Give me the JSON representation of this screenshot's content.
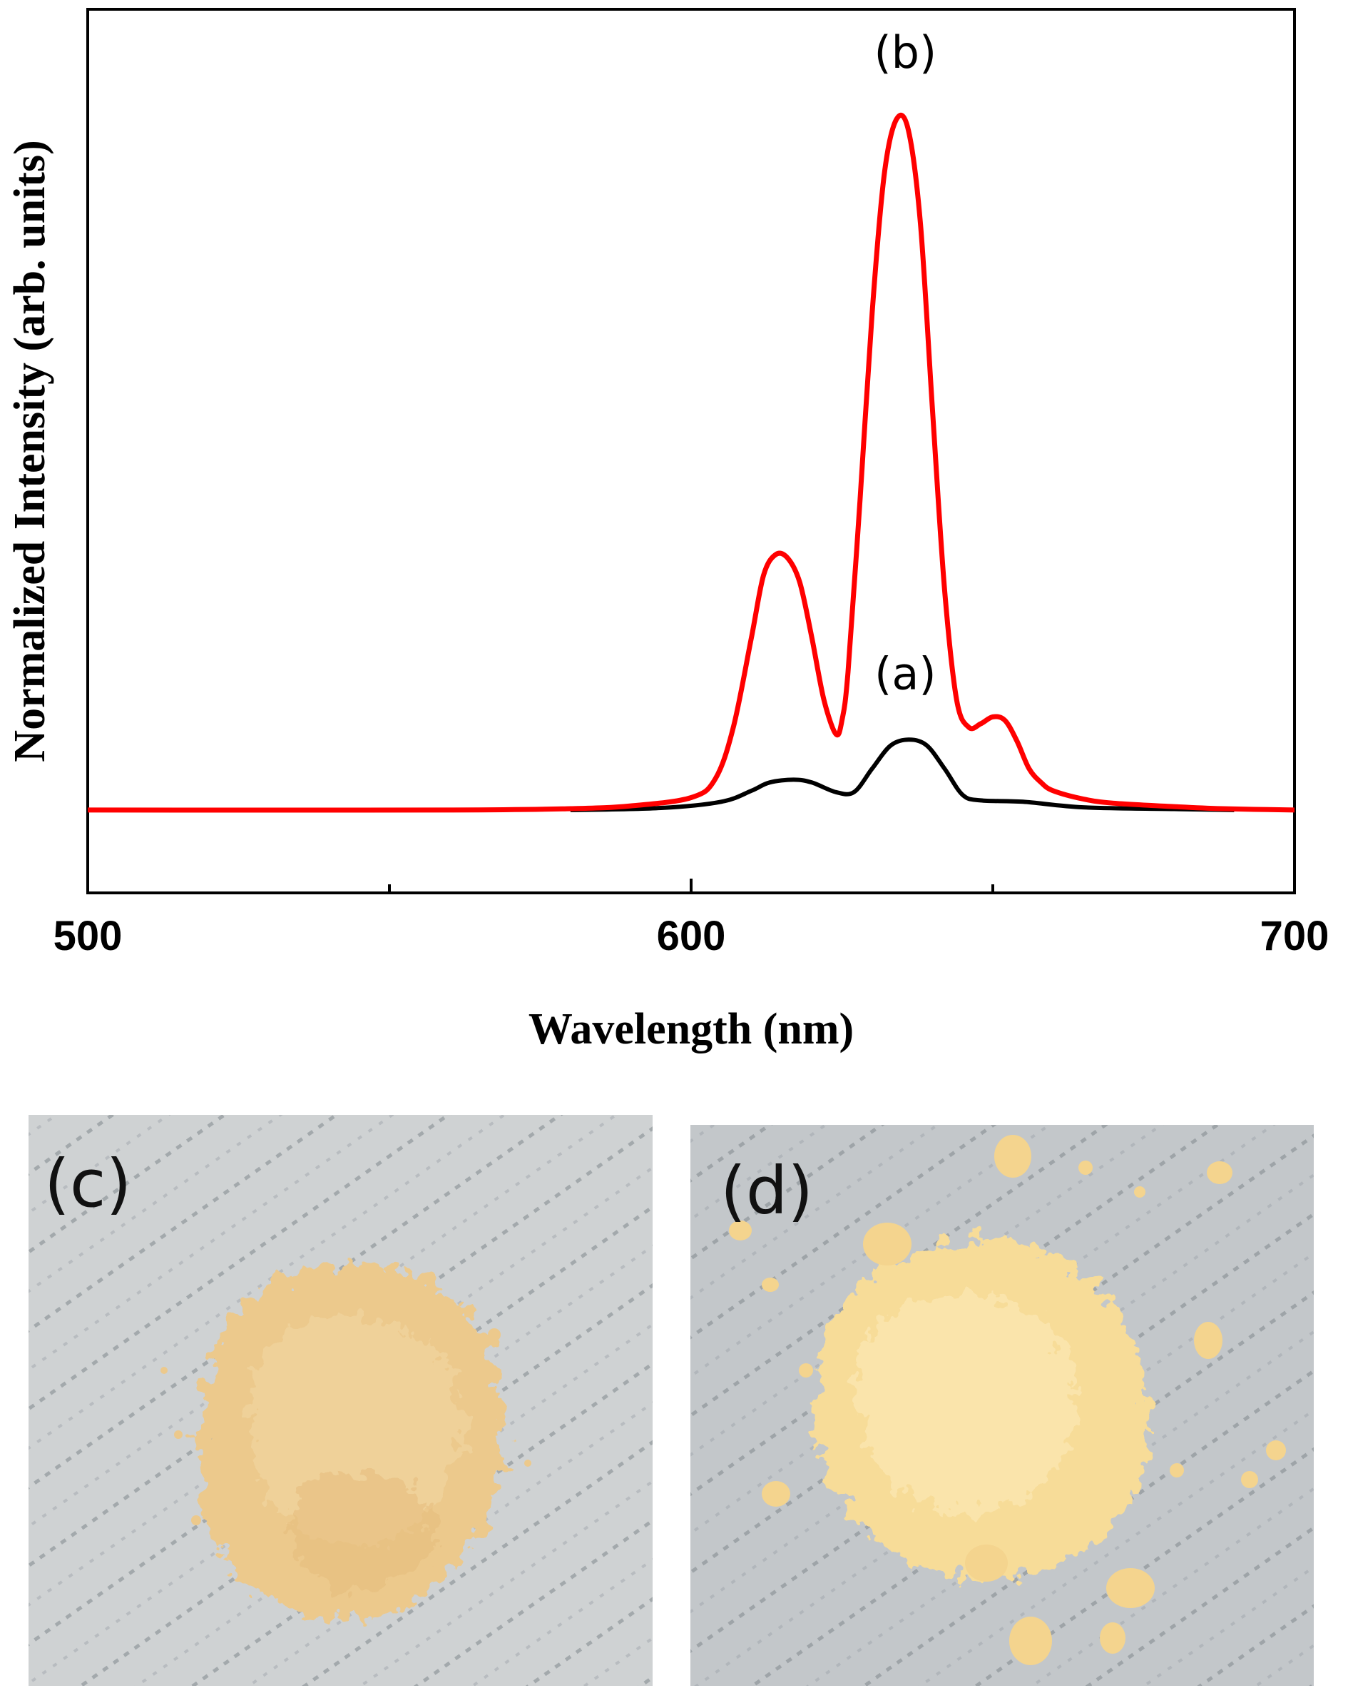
{
  "chart_data": {
    "type": "line",
    "title": "",
    "xlabel": "Wavelength (nm)",
    "ylabel": "Normalized Intensity (arb. units)",
    "xlim": [
      500,
      700
    ],
    "ylim": [
      -0.12,
      1.16
    ],
    "xticks": [
      500,
      600,
      700
    ],
    "xtick_labels": [
      "500",
      "600",
      "700"
    ],
    "yticks_shown": false,
    "grid": false,
    "series": [
      {
        "name": "(a)",
        "color": "#000000",
        "x": [
          580,
          595,
          605,
          610,
          613,
          617,
          620,
          624,
          627,
          630,
          633,
          636,
          639,
          642,
          645,
          648,
          655,
          665,
          680,
          690
        ],
        "y": [
          0,
          0.003,
          0.012,
          0.028,
          0.04,
          0.044,
          0.04,
          0.026,
          0.026,
          0.06,
          0.093,
          0.102,
          0.094,
          0.06,
          0.022,
          0.014,
          0.012,
          0.004,
          0.0015,
          0
        ]
      },
      {
        "name": "(b)",
        "color": "#ff0000",
        "x": [
          580,
          590,
          600,
          604,
          607,
          610,
          612,
          614,
          616,
          618,
          620,
          622,
          624,
          625,
          626,
          628,
          630,
          632,
          634,
          636,
          638,
          640,
          642,
          644,
          646,
          648,
          650,
          652,
          654,
          656,
          658,
          660,
          665,
          670,
          680,
          688,
          700
        ],
        "y": [
          0.002,
          0.006,
          0.018,
          0.045,
          0.12,
          0.25,
          0.34,
          0.37,
          0.365,
          0.33,
          0.25,
          0.16,
          0.11,
          0.13,
          0.2,
          0.45,
          0.72,
          0.92,
          1.0,
          0.985,
          0.85,
          0.58,
          0.32,
          0.16,
          0.12,
          0.125,
          0.135,
          0.13,
          0.1,
          0.06,
          0.04,
          0.028,
          0.016,
          0.01,
          0.005,
          0.002,
          0
        ]
      }
    ],
    "annotations": [
      {
        "text": "(a)",
        "x": 635.5,
        "y": 0.175
      },
      {
        "text": "(b)",
        "x": 635.5,
        "y": 1.075
      }
    ]
  },
  "photos": [
    {
      "label": "(c)",
      "description_color": "#eec98a"
    },
    {
      "label": "(d)",
      "description_color": "#f6da95"
    }
  ]
}
